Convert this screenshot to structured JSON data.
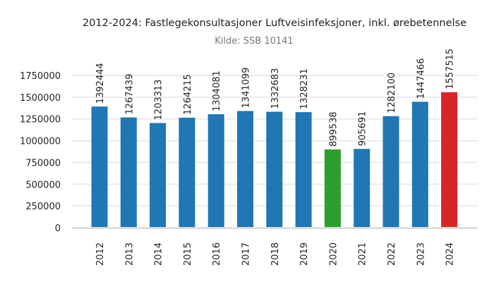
{
  "chart_data": {
    "type": "bar",
    "title": "2012-2024: Fastlegekonsultasjoner Luftveisinfeksjoner, inkl. ørebetennelse",
    "subtitle": "Kilde: SSB 10141",
    "xlabel": "",
    "ylabel": "",
    "categories": [
      "2012",
      "2013",
      "2014",
      "2015",
      "2016",
      "2017",
      "2018",
      "2019",
      "2020",
      "2021",
      "2022",
      "2023",
      "2024"
    ],
    "values": [
      1392444,
      1267439,
      1203313,
      1264215,
      1304081,
      1341099,
      1332683,
      1328231,
      899538,
      905691,
      1282100,
      1447466,
      1557515
    ],
    "bar_colors": [
      "#1f77b4",
      "#1f77b4",
      "#1f77b4",
      "#1f77b4",
      "#1f77b4",
      "#1f77b4",
      "#1f77b4",
      "#1f77b4",
      "#2ca02c",
      "#1f77b4",
      "#1f77b4",
      "#1f77b4",
      "#d62728"
    ],
    "yticks": [
      0,
      250000,
      500000,
      750000,
      1000000,
      1250000,
      1500000,
      1750000
    ],
    "ylim": [
      0,
      1750000
    ],
    "grid": true,
    "data_labels": true
  }
}
